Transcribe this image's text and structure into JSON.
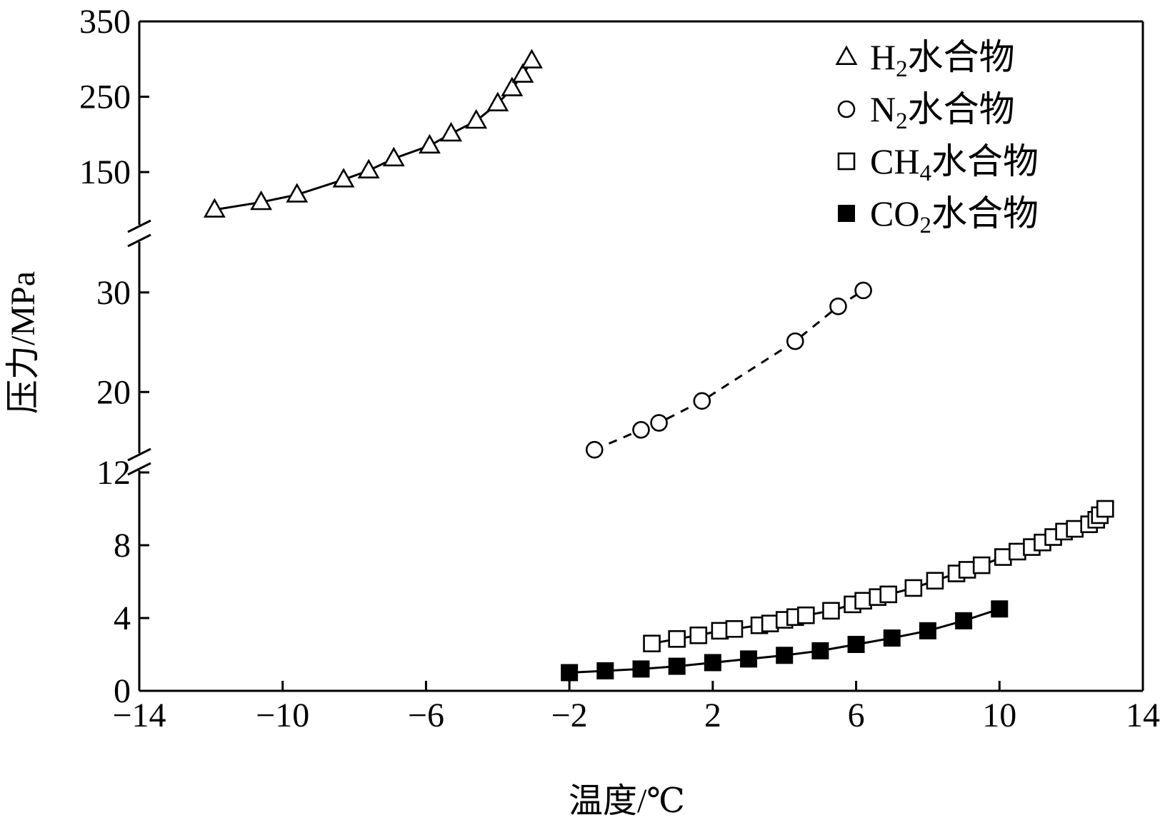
{
  "chart_data": {
    "type": "scatter",
    "title": "",
    "xlabel": "温度/℃",
    "ylabel": "压力/MPa",
    "xlim": [
      -14,
      14
    ],
    "x_ticks": [
      -14,
      -10,
      -6,
      -2,
      2,
      6,
      10,
      14
    ],
    "x_tick_labels": [
      "−14",
      "−10",
      "−6",
      "−2",
      "2",
      "6",
      "10",
      "14"
    ],
    "y_segments": [
      {
        "name": "low",
        "range": [
          0,
          12
        ],
        "ticks": [
          0,
          4,
          8,
          12
        ],
        "tick_labels": [
          "0",
          "4",
          "8",
          "12"
        ]
      },
      {
        "name": "mid",
        "range": [
          14,
          35
        ],
        "ticks": [
          20,
          30
        ],
        "tick_labels": [
          "20",
          "30"
        ]
      },
      {
        "name": "high",
        "range": [
          80,
          350
        ],
        "ticks": [
          150,
          250,
          350
        ],
        "tick_labels": [
          "150",
          "250",
          "350"
        ]
      }
    ],
    "axis_breaks": [
      12,
      35
    ],
    "legend_position": "top-right",
    "series": [
      {
        "name": "H2水合物",
        "legend_main": "H",
        "legend_sub": "2",
        "legend_suffix": "水合物",
        "marker": "triangle-open",
        "line": "solid",
        "segment": "high",
        "x": [
          -11.9,
          -10.6,
          -9.6,
          -8.3,
          -7.6,
          -6.9,
          -5.9,
          -5.3,
          -4.6,
          -4.0,
          -3.6,
          -3.3,
          -3.05
        ],
        "y": [
          100,
          110,
          120,
          140,
          152,
          168,
          185,
          201,
          218,
          241,
          261,
          279,
          298
        ]
      },
      {
        "name": "N2水合物",
        "legend_main": "N",
        "legend_sub": "2",
        "legend_suffix": "水合物",
        "marker": "circle-open",
        "line": "dashed",
        "segment": "mid",
        "x": [
          -1.3,
          0.0,
          0.5,
          1.7,
          4.3,
          5.5,
          6.2
        ],
        "y": [
          14.2,
          16.2,
          16.9,
          19.1,
          25.1,
          28.6,
          30.2
        ]
      },
      {
        "name": "CH4水合物",
        "legend_main": "CH",
        "legend_sub": "4",
        "legend_suffix": "水合物",
        "marker": "square-open",
        "line": "solid",
        "segment": "low",
        "x": [
          0.3,
          1.0,
          1.6,
          2.2,
          2.6,
          3.3,
          3.6,
          4.0,
          4.3,
          4.6,
          5.3,
          5.9,
          6.2,
          6.6,
          6.9,
          7.6,
          8.2,
          8.8,
          9.1,
          9.5,
          10.1,
          10.5,
          10.9,
          11.2,
          11.5,
          11.8,
          12.1,
          12.5,
          12.7,
          12.8,
          12.95
        ],
        "y": [
          2.6,
          2.85,
          3.05,
          3.3,
          3.4,
          3.6,
          3.7,
          3.9,
          4.05,
          4.15,
          4.4,
          4.75,
          4.95,
          5.15,
          5.3,
          5.65,
          6.05,
          6.45,
          6.65,
          6.9,
          7.35,
          7.65,
          7.9,
          8.15,
          8.45,
          8.75,
          8.9,
          9.15,
          9.4,
          9.65,
          10.0
        ]
      },
      {
        "name": "CO2水合物",
        "legend_main": "CO",
        "legend_sub": "2",
        "legend_suffix": "水合物",
        "marker": "square-filled",
        "line": "solid",
        "segment": "low",
        "x": [
          -2,
          -1,
          0,
          1,
          2,
          3,
          4,
          5,
          6,
          7,
          8,
          9,
          10
        ],
        "y": [
          1.0,
          1.1,
          1.2,
          1.35,
          1.55,
          1.75,
          1.95,
          2.2,
          2.55,
          2.9,
          3.3,
          3.85,
          4.5
        ]
      }
    ]
  }
}
